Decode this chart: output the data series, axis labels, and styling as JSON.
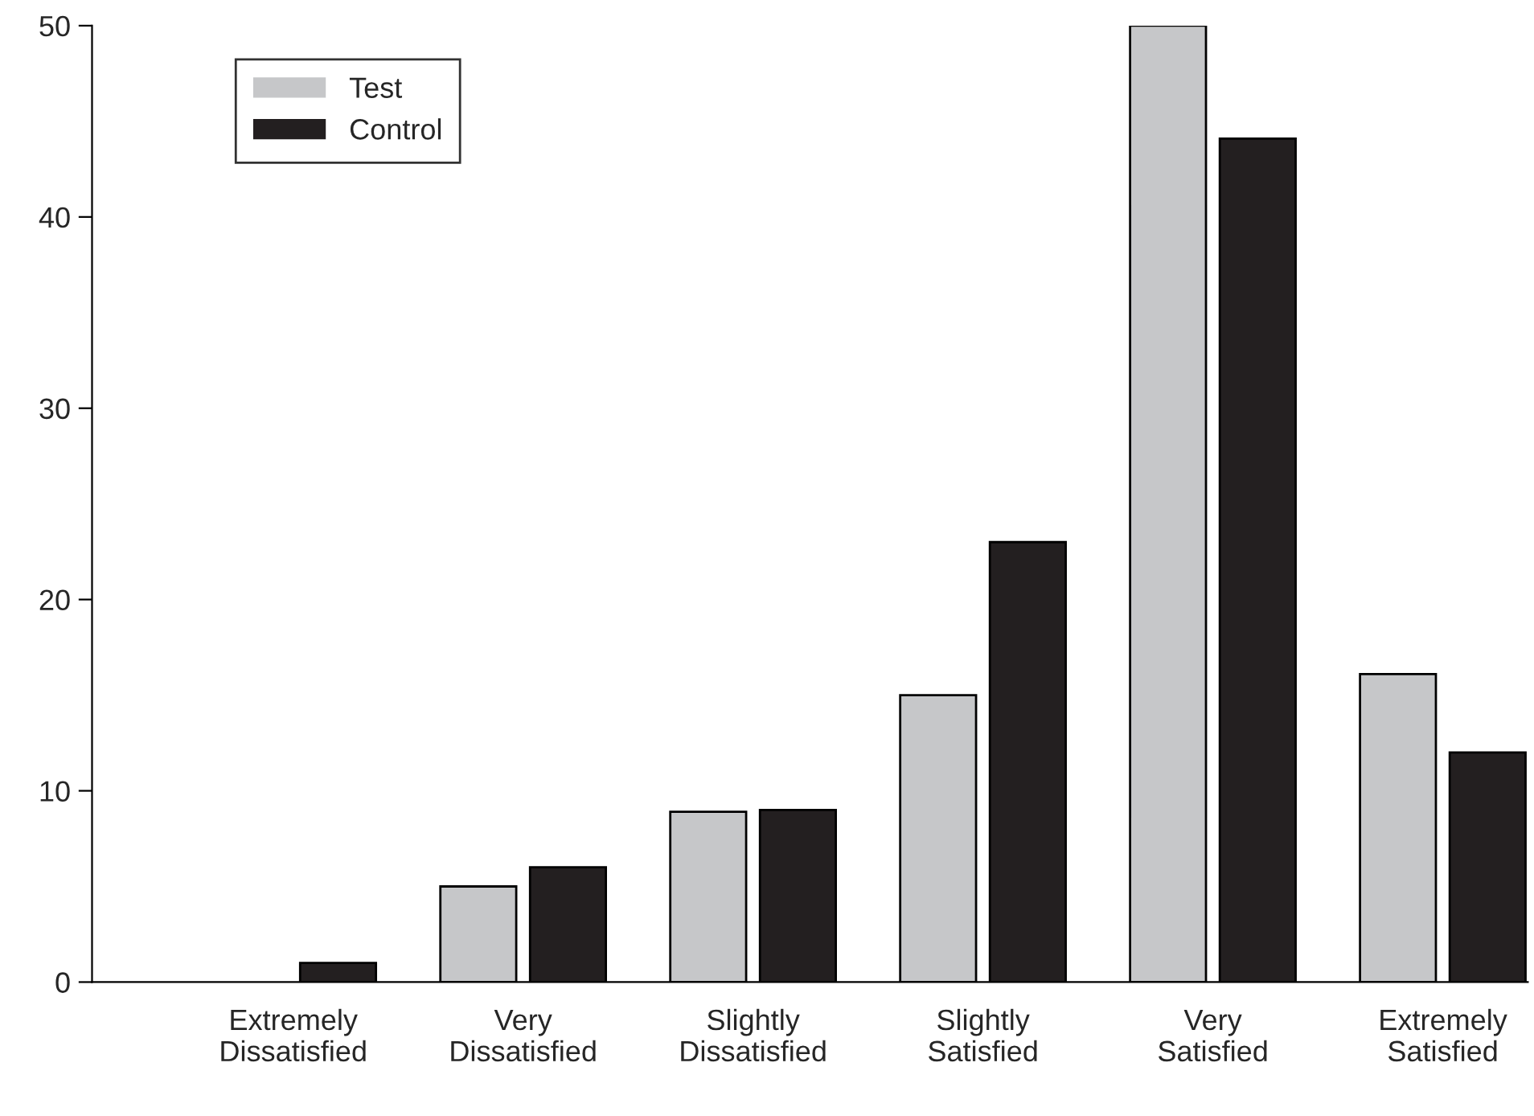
{
  "chart_data": {
    "type": "bar",
    "categories": [
      "Extremely\nDissatisfied",
      "Very\nDissatisfied",
      "Slightly\nDissatisfied",
      "Slightly\nSatisfied",
      "Very\nSatisfied",
      "Extremely\nSatisfied"
    ],
    "series": [
      {
        "name": "Test",
        "color": "#c6c7c9",
        "values": [
          0,
          5,
          8.9,
          15,
          50,
          16.1
        ]
      },
      {
        "name": "Control",
        "color": "#231f20",
        "values": [
          1,
          6,
          9,
          23,
          44.1,
          12
        ]
      }
    ],
    "ylim": [
      0,
      50
    ],
    "yticks": [
      0,
      10,
      20,
      30,
      40,
      50
    ],
    "grid": false,
    "legend": "top left"
  }
}
